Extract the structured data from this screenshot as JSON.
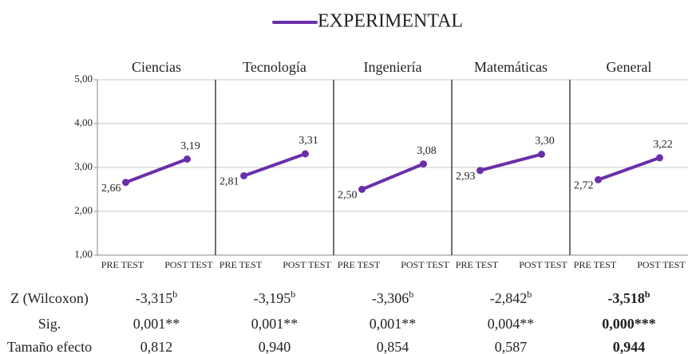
{
  "legend": {
    "name": "EXPERIMENTAL",
    "color": "#6a2fa8"
  },
  "chart_data": [
    {
      "type": "line",
      "title": "Ciencias",
      "categories": [
        "PRE TEST",
        "POST TEST"
      ],
      "series": [
        {
          "color": "#6a2fa8",
          "values": [
            2.66,
            3.19
          ],
          "value_labels": [
            "2,66",
            "3,19"
          ]
        }
      ],
      "ylim": [
        1,
        5
      ],
      "yticks": [
        {
          "value": 1,
          "label": "1,00"
        },
        {
          "value": 2,
          "label": "2,00"
        },
        {
          "value": 3,
          "label": "3,00"
        },
        {
          "value": 4,
          "label": "4,00"
        },
        {
          "value": 5,
          "label": "5,00"
        }
      ],
      "grid": true
    },
    {
      "type": "line",
      "title": "Tecnología",
      "categories": [
        "PRE TEST",
        "POST TEST"
      ],
      "series": [
        {
          "color": "#6a2fa8",
          "values": [
            2.81,
            3.31
          ],
          "value_labels": [
            "2,81",
            "3,31"
          ]
        }
      ],
      "ylim": [
        1,
        5
      ],
      "grid": true
    },
    {
      "type": "line",
      "title": "Ingeniería",
      "categories": [
        "PRE TEST",
        "POST TEST"
      ],
      "series": [
        {
          "color": "#6a2fa8",
          "values": [
            2.5,
            3.08
          ],
          "value_labels": [
            "2,50",
            "3,08"
          ]
        }
      ],
      "ylim": [
        1,
        5
      ],
      "grid": true
    },
    {
      "type": "line",
      "title": "Matemáticas",
      "categories": [
        "PRE TEST",
        "POST TEST"
      ],
      "series": [
        {
          "color": "#6a2fa8",
          "values": [
            2.93,
            3.3
          ],
          "value_labels": [
            "2,93",
            "3,30"
          ]
        }
      ],
      "ylim": [
        1,
        5
      ],
      "grid": true
    },
    {
      "type": "line",
      "title": "General",
      "categories": [
        "PRE TEST",
        "POST TEST"
      ],
      "series": [
        {
          "color": "#6a2fa8",
          "values": [
            2.72,
            3.22
          ],
          "value_labels": [
            "2,72",
            "3,22"
          ]
        }
      ],
      "ylim": [
        1,
        5
      ],
      "grid": true
    }
  ],
  "table": {
    "bold_column": 4,
    "rows": [
      {
        "label": "Z (Wilcoxon)",
        "cells": [
          {
            "text": "-3,315",
            "sup": "b"
          },
          {
            "text": "-3,195",
            "sup": "b"
          },
          {
            "text": "-3,306",
            "sup": "b"
          },
          {
            "text": "-2,842",
            "sup": "b"
          },
          {
            "text": "-3,518",
            "sup": "b"
          }
        ]
      },
      {
        "label": "Sig.",
        "cells": [
          {
            "text": "0,001**"
          },
          {
            "text": "0,001**"
          },
          {
            "text": "0,001**"
          },
          {
            "text": "0,004**"
          },
          {
            "text": "0,000***"
          }
        ]
      },
      {
        "label": "Tamaño efecto",
        "cells": [
          {
            "text": "0,812"
          },
          {
            "text": "0,940"
          },
          {
            "text": "0,854"
          },
          {
            "text": "0,587"
          },
          {
            "text": "0,944"
          }
        ]
      }
    ]
  }
}
